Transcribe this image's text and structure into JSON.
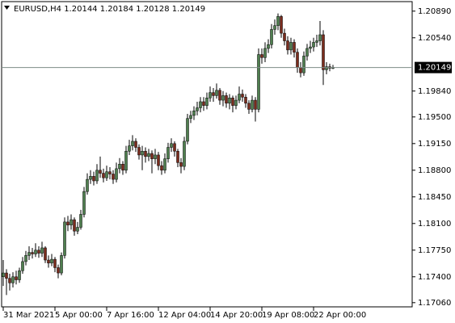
{
  "chart_data": {
    "type": "candlestick",
    "title": "EURUSD,H4  1.20144 1.20184 1.20128 1.20149",
    "categories": [
      "31 Mar 2021",
      null,
      null,
      null,
      null,
      null,
      null,
      null,
      null,
      null,
      null,
      null,
      null,
      null,
      null,
      null,
      "5 Apr 00:00",
      null,
      null,
      null,
      null,
      null,
      null,
      null,
      null,
      null,
      null,
      null,
      null,
      null,
      null,
      null,
      "7 Apr 16:00",
      null,
      null,
      null,
      null,
      null,
      null,
      null,
      null,
      null,
      null,
      null,
      null,
      null,
      null,
      null,
      "12 Apr 04:00",
      null,
      null,
      null,
      null,
      null,
      null,
      null,
      null,
      null,
      null,
      null,
      null,
      null,
      null,
      null,
      "14 Apr 20:00",
      null,
      null,
      null,
      null,
      null,
      null,
      null,
      null,
      null,
      null,
      null,
      null,
      null,
      null,
      null,
      "19 Apr 08:00",
      null,
      null,
      null,
      null,
      null,
      null,
      null,
      null,
      null,
      null,
      null,
      null,
      null,
      null,
      null,
      "22 Apr 00:00",
      null,
      null,
      null,
      null,
      null,
      null
    ],
    "open": [
      1.174,
      1.1745,
      1.1738,
      1.1732,
      1.174,
      1.1736,
      1.1748,
      1.176,
      1.1768,
      1.1772,
      1.177,
      1.1775,
      1.1771,
      1.1778,
      1.1762,
      1.1758,
      1.1763,
      1.1752,
      1.1745,
      1.1768,
      1.1812,
      1.1808,
      1.1815,
      1.18,
      1.1805,
      1.1822,
      1.1852,
      1.1868,
      1.1872,
      1.1866,
      1.188,
      1.1876,
      1.187,
      1.1878,
      1.1875,
      1.1868,
      1.1882,
      1.1888,
      1.188,
      1.1905,
      1.1912,
      1.1918,
      1.191,
      1.19,
      1.1905,
      1.1898,
      1.1902,
      1.1895,
      1.19,
      1.1886,
      1.188,
      1.1895,
      1.191,
      1.1915,
      1.1905,
      1.189,
      1.1885,
      1.1918,
      1.1948,
      1.1952,
      1.1958,
      1.1962,
      1.197,
      1.1965,
      1.1975,
      1.1982,
      1.1978,
      1.1985,
      1.1972,
      1.1978,
      1.1968,
      1.1975,
      1.1965,
      1.1972,
      1.198,
      1.1976,
      1.1968,
      1.196,
      1.1972,
      1.196,
      1.2032,
      1.2028,
      1.204,
      1.2045,
      1.2065,
      1.207,
      1.2082,
      1.206,
      1.205,
      1.2038,
      1.2048,
      1.2035,
      1.2015,
      1.2008,
      1.203,
      1.204,
      1.2042,
      1.2048,
      1.205,
      1.2058,
      1.2012,
      1.2016,
      1.20144
    ],
    "high": [
      1.1762,
      1.175,
      1.1744,
      1.1746,
      1.1748,
      1.1752,
      1.1766,
      1.1774,
      1.178,
      1.1778,
      1.1784,
      1.178,
      1.1786,
      1.178,
      1.1768,
      1.177,
      1.1766,
      1.1756,
      1.1772,
      1.1818,
      1.182,
      1.1822,
      1.1818,
      1.1812,
      1.1828,
      1.1858,
      1.1876,
      1.188,
      1.1878,
      1.1888,
      1.1898,
      1.1882,
      1.1886,
      1.1884,
      1.188,
      1.189,
      1.1896,
      1.1892,
      1.1912,
      1.192,
      1.1926,
      1.1922,
      1.1914,
      1.1912,
      1.191,
      1.1908,
      1.1906,
      1.1908,
      1.1904,
      1.1892,
      1.1902,
      1.1916,
      1.1922,
      1.1918,
      1.1908,
      1.1896,
      1.1924,
      1.1954,
      1.1958,
      1.1964,
      1.197,
      1.1976,
      1.1976,
      1.1982,
      1.199,
      1.1988,
      1.1994,
      1.1988,
      1.1984,
      1.1982,
      1.198,
      1.1978,
      1.1978,
      1.199,
      1.1986,
      1.198,
      1.1972,
      1.1978,
      1.1976,
      1.204,
      1.204,
      1.2048,
      1.2052,
      1.2072,
      1.2078,
      1.2086,
      1.2084,
      1.2066,
      1.2056,
      1.2054,
      1.2052,
      1.204,
      1.2022,
      1.2036,
      1.2046,
      1.205,
      1.2054,
      1.2058,
      1.2076,
      1.2064,
      1.2022,
      1.202,
      1.20184
    ],
    "low": [
      1.1728,
      1.1716,
      1.1722,
      1.1726,
      1.173,
      1.1732,
      1.1744,
      1.1755,
      1.1762,
      1.1764,
      1.1766,
      1.1765,
      1.1766,
      1.1758,
      1.1752,
      1.1754,
      1.1746,
      1.1738,
      1.1742,
      1.1764,
      1.18,
      1.1802,
      1.1794,
      1.1796,
      1.1802,
      1.1818,
      1.1848,
      1.1862,
      1.186,
      1.1862,
      1.187,
      1.1864,
      1.1866,
      1.1868,
      1.1862,
      1.1864,
      1.1876,
      1.1874,
      1.1876,
      1.19,
      1.1906,
      1.1904,
      1.1894,
      1.188,
      1.189,
      1.1892,
      1.1876,
      1.1888,
      1.188,
      1.1874,
      1.1876,
      1.189,
      1.1904,
      1.1898,
      1.1884,
      1.1876,
      1.188,
      1.1914,
      1.1942,
      1.1946,
      1.1952,
      1.1956,
      1.1958,
      1.196,
      1.197,
      1.197,
      1.1974,
      1.1966,
      1.1964,
      1.1962,
      1.196,
      1.1956,
      1.196,
      1.1968,
      1.197,
      1.1962,
      1.1954,
      1.1956,
      1.1944,
      1.1956,
      1.202,
      1.2022,
      1.2034,
      1.204,
      1.2058,
      1.2064,
      1.2054,
      1.2044,
      1.2032,
      1.2032,
      1.2028,
      1.2008,
      1.2002,
      1.2004,
      1.2024,
      1.2034,
      1.2036,
      1.2042,
      1.2044,
      1.1992,
      1.2006,
      1.201,
      1.20128
    ],
    "close": [
      1.1745,
      1.1738,
      1.1732,
      1.174,
      1.1736,
      1.1748,
      1.176,
      1.1768,
      1.1772,
      1.177,
      1.1775,
      1.1771,
      1.1778,
      1.1762,
      1.1758,
      1.1763,
      1.1752,
      1.1745,
      1.1768,
      1.1812,
      1.1808,
      1.1815,
      1.18,
      1.1805,
      1.1822,
      1.1852,
      1.1868,
      1.1872,
      1.1866,
      1.188,
      1.1876,
      1.187,
      1.1878,
      1.1875,
      1.1868,
      1.1882,
      1.1888,
      1.188,
      1.1905,
      1.1912,
      1.1918,
      1.191,
      1.19,
      1.1905,
      1.1898,
      1.1902,
      1.1895,
      1.19,
      1.1886,
      1.188,
      1.1895,
      1.191,
      1.1915,
      1.1905,
      1.189,
      1.1885,
      1.1918,
      1.1948,
      1.1952,
      1.1958,
      1.1962,
      1.197,
      1.1965,
      1.1975,
      1.1982,
      1.1978,
      1.1985,
      1.1972,
      1.1978,
      1.1968,
      1.1975,
      1.1965,
      1.1972,
      1.198,
      1.1976,
      1.1968,
      1.196,
      1.1972,
      1.196,
      1.2032,
      1.2028,
      1.204,
      1.2045,
      1.2065,
      1.207,
      1.2082,
      1.206,
      1.205,
      1.2038,
      1.2048,
      1.2035,
      1.2015,
      1.2008,
      1.203,
      1.204,
      1.2042,
      1.2048,
      1.205,
      1.2058,
      1.2012,
      1.2016,
      1.2014,
      1.20149
    ],
    "ylim": [
      1.17005,
      1.21015
    ],
    "yticks": [
      {
        "value": 1.2089,
        "label": "1.20890"
      },
      {
        "value": 1.2054,
        "label": "1.20540"
      },
      {
        "value": 1.1984,
        "label": "1.19840"
      },
      {
        "value": 1.195,
        "label": "1.19500"
      },
      {
        "value": 1.1915,
        "label": "1.19150"
      },
      {
        "value": 1.188,
        "label": "1.18800"
      },
      {
        "value": 1.1845,
        "label": "1.18450"
      },
      {
        "value": 1.181,
        "label": "1.18100"
      },
      {
        "value": 1.1775,
        "label": "1.17750"
      },
      {
        "value": 1.174,
        "label": "1.17400"
      },
      {
        "value": 1.1706,
        "label": "1.17060"
      }
    ],
    "current_price": 1.20149,
    "up_color": "#4f7f4f",
    "down_color": "#7a2b1c",
    "wick_color": "#000000",
    "price_line_color": "#7d8c86"
  }
}
